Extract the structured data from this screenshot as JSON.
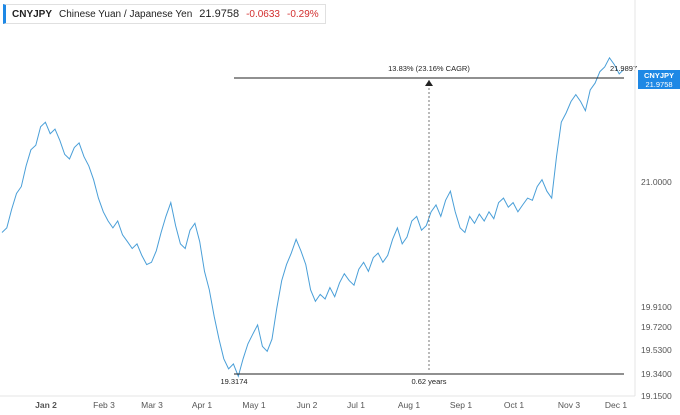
{
  "header": {
    "symbol": "CNYJPY",
    "name": "Chinese Yuan / Japanese Yen",
    "last": "21.9758",
    "change": "-0.0633",
    "change_pct": "-0.29%"
  },
  "colors": {
    "line": "#4a9fd8",
    "axis_badge": "#1e88e5",
    "negative": "#d32f2f"
  },
  "price_badge": {
    "symbol": "CNYJPY",
    "value": "21.9758"
  },
  "annotations": {
    "high_value": "21.9897",
    "low_value": "19.3174",
    "measure_text": "13.83% (23.16% CAGR)",
    "duration_text": "0.62 years"
  },
  "chart_data": {
    "type": "line",
    "title": "",
    "xlabel": "",
    "ylabel": "",
    "x_ticks": [
      "Jan 2",
      "Feb 3",
      "Mar 3",
      "Apr 1",
      "May 1",
      "Jun 2",
      "Jul 1",
      "Aug 1",
      "Sep 1",
      "Oct 1",
      "Nov 3",
      "Dec 1"
    ],
    "y_ticks": [
      "21.0000",
      "19.9100",
      "19.7200",
      "19.5300",
      "19.3400",
      "19.1500"
    ],
    "ylim": [
      19.15,
      22.2
    ],
    "series": [
      {
        "values": [
          20.56,
          20.6,
          20.76,
          20.9,
          20.96,
          21.14,
          21.28,
          21.32,
          21.48,
          21.52,
          21.42,
          21.46,
          21.36,
          21.24,
          21.2,
          21.3,
          21.34,
          21.22,
          21.14,
          21.02,
          20.86,
          20.74,
          20.66,
          20.6,
          20.66,
          20.54,
          20.48,
          20.42,
          20.46,
          20.36,
          20.28,
          20.3,
          20.4,
          20.56,
          20.7,
          20.82,
          20.62,
          20.46,
          20.42,
          20.58,
          20.64,
          20.48,
          20.22,
          20.06,
          19.82,
          19.62,
          19.46,
          19.38,
          19.42,
          19.32,
          19.46,
          19.58,
          19.66,
          19.74,
          19.56,
          19.52,
          19.62,
          19.9,
          20.14,
          20.28,
          20.38,
          20.5,
          20.4,
          20.28,
          20.06,
          19.96,
          20.02,
          19.98,
          20.08,
          20.0,
          20.12,
          20.2,
          20.14,
          20.1,
          20.24,
          20.3,
          20.22,
          20.34,
          20.38,
          20.3,
          20.36,
          20.5,
          20.6,
          20.46,
          20.52,
          20.66,
          20.7,
          20.58,
          20.62,
          20.74,
          20.8,
          20.7,
          20.84,
          20.92,
          20.74,
          20.6,
          20.56,
          20.7,
          20.64,
          20.72,
          20.66,
          20.74,
          20.68,
          20.82,
          20.86,
          20.78,
          20.82,
          20.74,
          20.8,
          20.86,
          20.84,
          20.96,
          21.02,
          20.92,
          20.86,
          21.22,
          21.52,
          21.6,
          21.7,
          21.76,
          21.7,
          21.62,
          21.8,
          21.86,
          21.96,
          22.0,
          22.08,
          22.02,
          21.94,
          21.98
        ]
      }
    ]
  }
}
